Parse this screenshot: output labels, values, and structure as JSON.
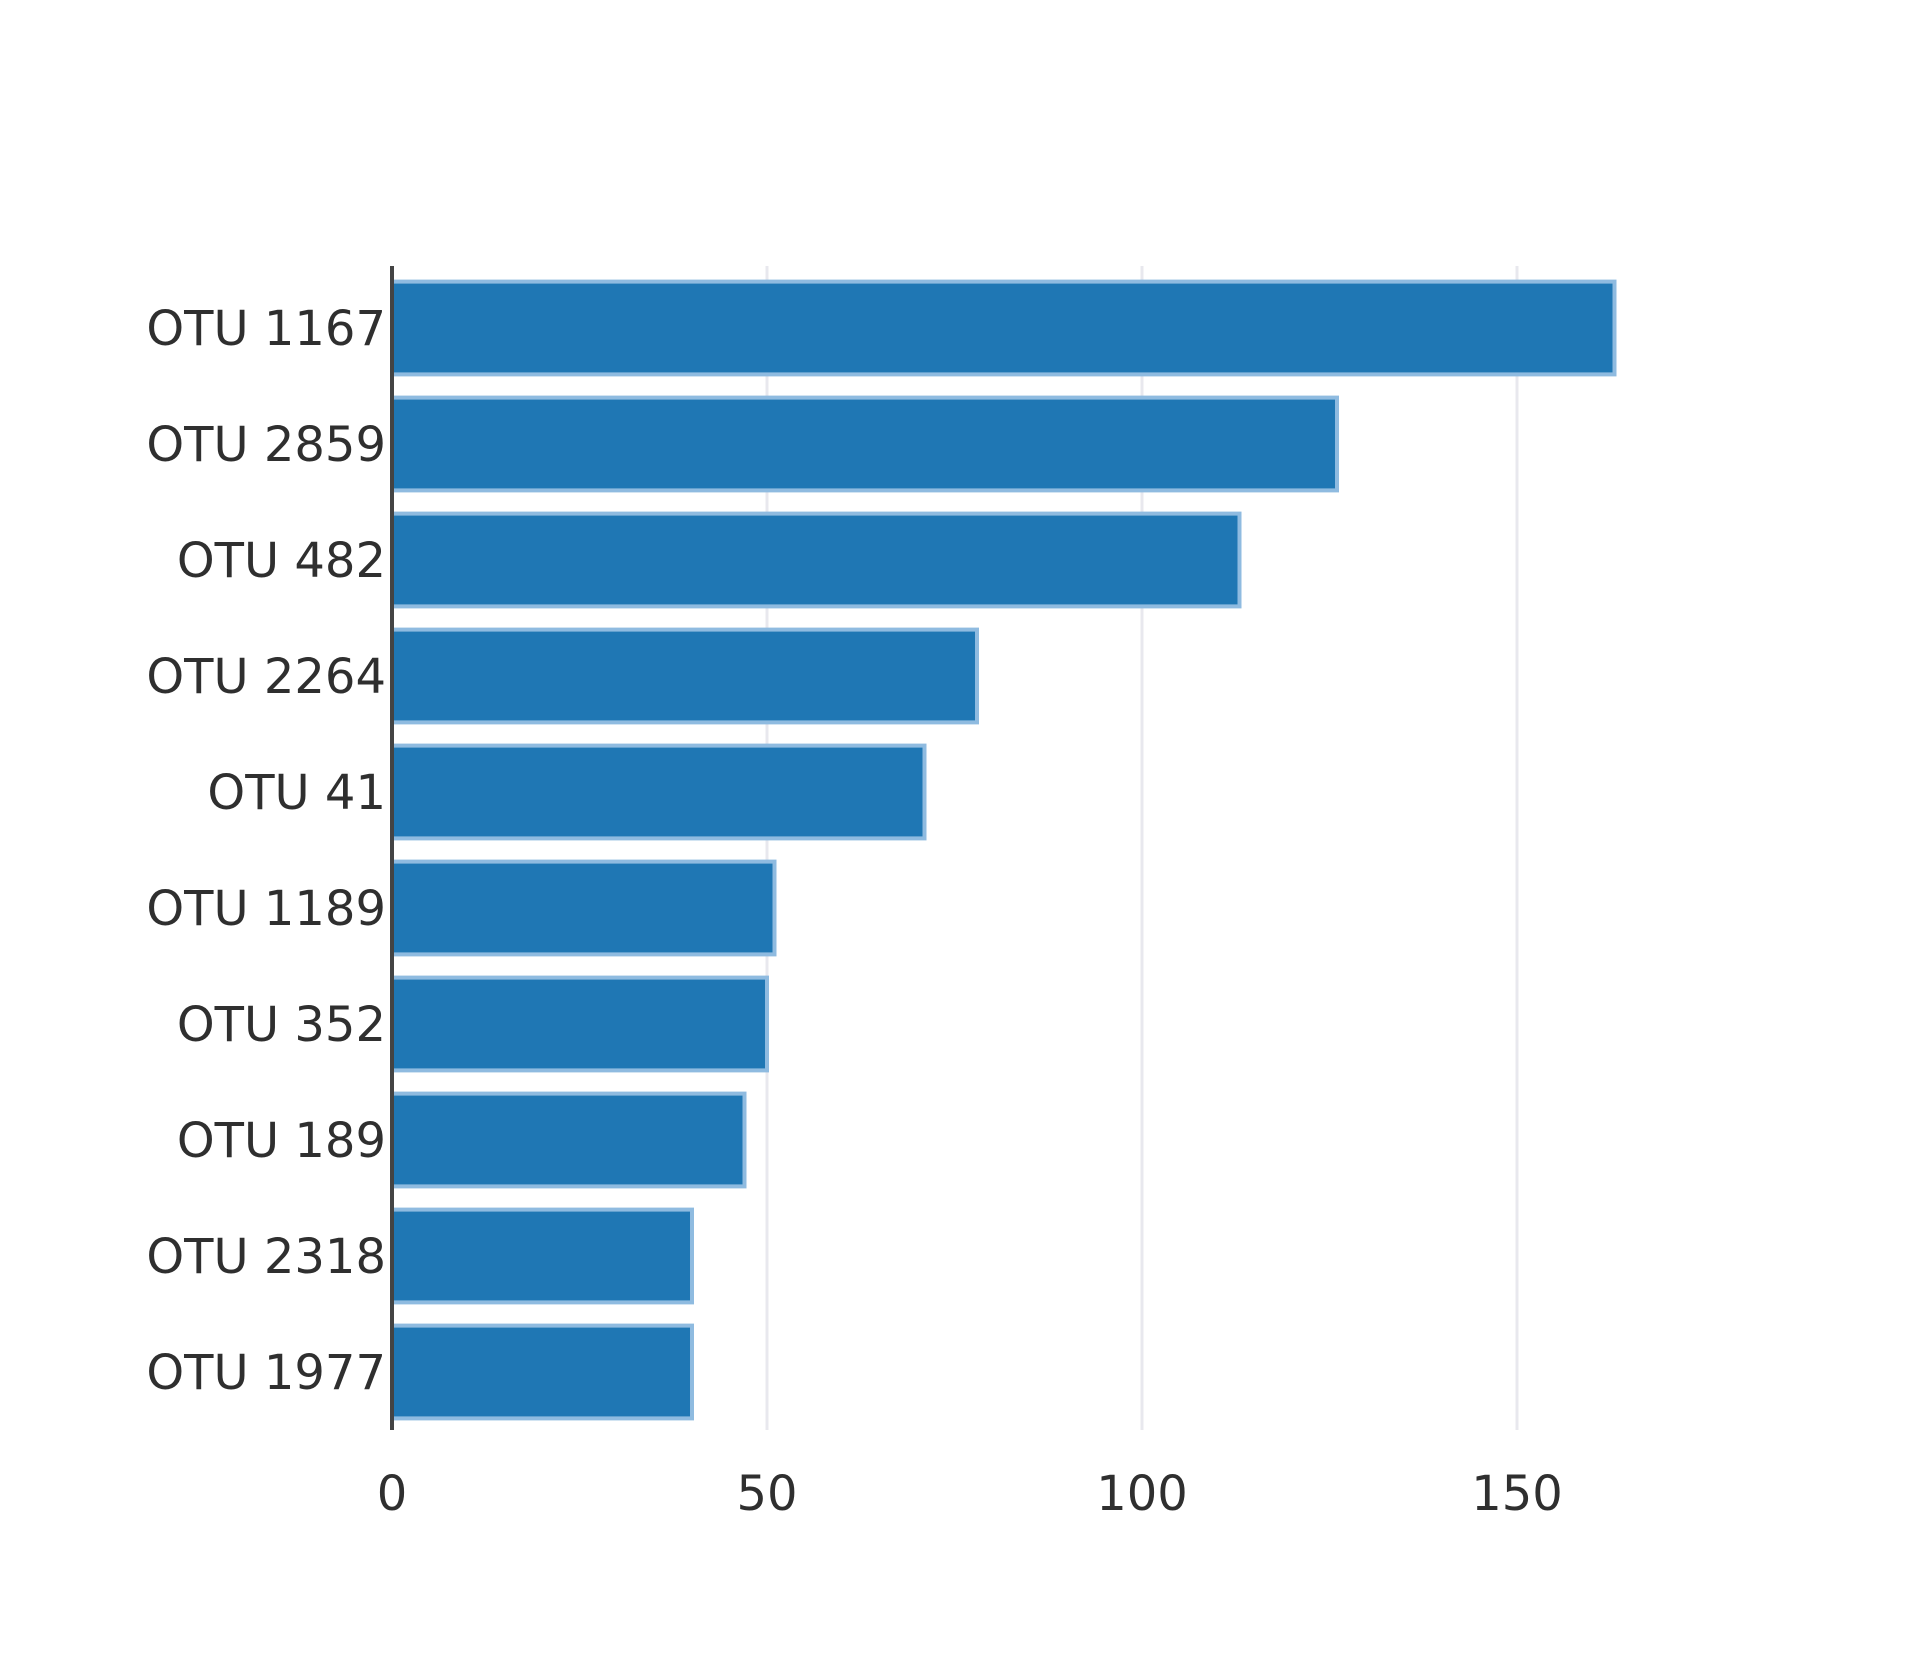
{
  "chart_data": {
    "type": "bar",
    "orientation": "horizontal",
    "title": "",
    "xlabel": "",
    "ylabel": "",
    "categories": [
      "OTU 1167",
      "OTU 2859",
      "OTU 482",
      "OTU 2264",
      "OTU 41",
      "OTU 1189",
      "OTU 352",
      "OTU 189",
      "OTU 2318",
      "OTU 1977"
    ],
    "values": [
      163,
      126,
      113,
      78,
      71,
      51,
      50,
      47,
      40,
      40
    ],
    "xlim": [
      0,
      190
    ],
    "xticks": [
      0,
      50,
      100,
      150
    ],
    "xtick_labels": [
      "0",
      "50",
      "100",
      "150"
    ],
    "grid": true,
    "legend": "none",
    "bar_color": "#1f77b4",
    "bar_border_color": "#8fbbe0",
    "grid_color": "#e8e8ee",
    "axis_color": "#444444"
  }
}
